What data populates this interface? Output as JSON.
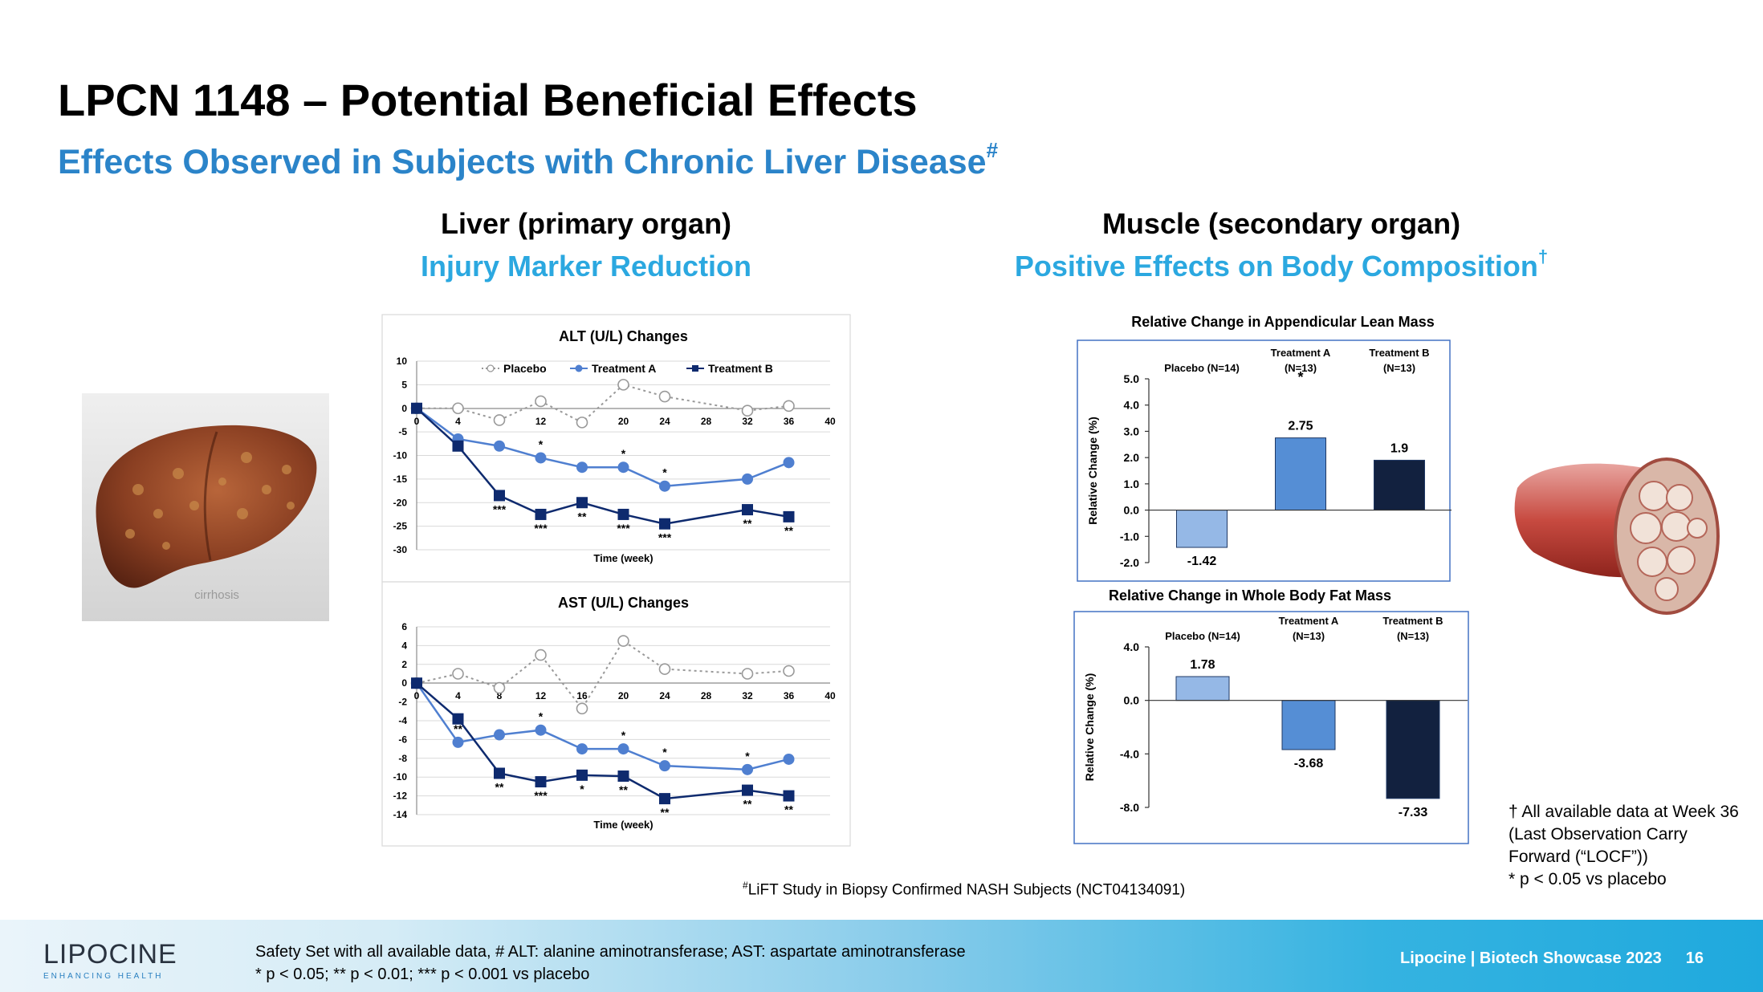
{
  "title": "LPCN 1148 – Potential Beneficial Effects",
  "subtitle": {
    "text": "Effects Observed in Subjects with Chronic Liver Disease",
    "mark": "#"
  },
  "liver": {
    "heading": "Liver  (primary organ)",
    "subheading": "Injury Marker Reduction",
    "image_caption": "cirrhosis"
  },
  "muscle": {
    "heading": "Muscle  (secondary organ)",
    "subheading": "Positive Effects on Body Composition",
    "mark": "†"
  },
  "footnote_mid": {
    "mark": "#",
    "text": "LiFT Study in Biopsy Confirmed NASH Subjects (NCT04134091)"
  },
  "right_note": {
    "line1": "† All available data at Week 36 (Last Observation Carry Forward (“LOCF”))",
    "line2": "* p < 0.05 vs placebo"
  },
  "footer": {
    "logo": "LIPOCINE",
    "logo_tagline": "ENHANCING HEALTH",
    "note1": "Safety Set with all available data,  # ALT:  alanine aminotransferase; AST: aspartate aminotransferase",
    "note2": "* p < 0.05; ** p < 0.01; *** p < 0.001 vs placebo",
    "event": "Lipocine |  Biotech Showcase 2023",
    "page": "16"
  },
  "colors": {
    "placebo_line": "#999999",
    "treatment_a": "#4f7fd0",
    "treatment_b": "#0e2a6e",
    "bar_placebo": "#95b8e6",
    "bar_a": "#558ed5",
    "bar_b": "#12213f",
    "subtitle": "#2b84c9"
  },
  "chart_data": [
    {
      "id": "alt",
      "type": "line",
      "title": "ALT (U/L) Changes",
      "xlabel": "Time (week)",
      "x": [
        0,
        4,
        8,
        12,
        16,
        20,
        24,
        32,
        36
      ],
      "xticks": [
        0,
        4,
        8,
        12,
        16,
        20,
        24,
        28,
        32,
        36,
        40
      ],
      "xlim": [
        0,
        40
      ],
      "yticks": [
        10,
        5,
        0,
        -5,
        -10,
        -15,
        -20,
        -25,
        -30
      ],
      "ylim": [
        -30,
        10
      ],
      "legend": "top",
      "series": [
        {
          "name": "Placebo",
          "values": [
            0,
            0,
            -2.5,
            1.5,
            -3,
            5,
            2.5,
            -0.5,
            0.5
          ]
        },
        {
          "name": "Treatment A",
          "values": [
            0,
            -6.5,
            -8,
            -10.5,
            -12.5,
            -12.5,
            -16.5,
            -15,
            -11.5
          ],
          "annotations": [
            "",
            "",
            "",
            "*",
            "",
            "*",
            "*",
            "",
            ""
          ]
        },
        {
          "name": "Treatment B",
          "values": [
            0,
            -8,
            -18.5,
            -22.5,
            -20,
            -22.5,
            -24.5,
            -21.5,
            -23
          ],
          "annotations": [
            "",
            "",
            "***",
            "***",
            "**",
            "***",
            "***",
            "**",
            "**"
          ]
        }
      ]
    },
    {
      "id": "ast",
      "type": "line",
      "title": "AST (U/L) Changes",
      "xlabel": "Time (week)",
      "x": [
        0,
        4,
        8,
        12,
        16,
        20,
        24,
        32,
        36
      ],
      "xticks": [
        0,
        4,
        8,
        12,
        16,
        20,
        24,
        28,
        32,
        36,
        40
      ],
      "xlim": [
        0,
        40
      ],
      "yticks": [
        6,
        4,
        2,
        0,
        -2,
        -4,
        -6,
        -8,
        -10,
        -12,
        -14
      ],
      "ylim": [
        -14,
        6
      ],
      "series": [
        {
          "name": "Placebo",
          "values": [
            0,
            1,
            -0.5,
            3,
            -2.7,
            4.5,
            1.5,
            1,
            1.3
          ]
        },
        {
          "name": "Treatment A",
          "values": [
            0,
            -6.3,
            -5.5,
            -5,
            -7,
            -7,
            -8.8,
            -9.2,
            -8.1
          ],
          "annotations": [
            "",
            "**",
            "",
            "*",
            "",
            "*",
            "*",
            "*",
            ""
          ]
        },
        {
          "name": "Treatment B",
          "values": [
            0,
            -3.8,
            -9.6,
            -10.5,
            -9.8,
            -9.9,
            -12.3,
            -11.4,
            -12
          ],
          "annotations": [
            "",
            "",
            "**",
            "***",
            "*",
            "**",
            "**",
            "**",
            "**"
          ]
        }
      ]
    },
    {
      "id": "lean",
      "type": "bar",
      "title": "Relative Change in Appendicular Lean Mass",
      "ylabel": "Relative Change (%)",
      "categories": [
        [
          "Placebo (N=14)"
        ],
        [
          "Treatment A",
          "(N=13)"
        ],
        [
          "Treatment B",
          "(N=13)"
        ]
      ],
      "values": [
        -1.42,
        2.75,
        1.9
      ],
      "labels": [
        "-1.42",
        "2.75",
        "1.9"
      ],
      "significance": [
        "",
        "*",
        ""
      ],
      "yticks": [
        5.0,
        4.0,
        3.0,
        2.0,
        1.0,
        0.0,
        -1.0,
        -2.0
      ],
      "ytick_labels": [
        "5.0",
        "4.0",
        "3.0",
        "2.0",
        "1.0",
        "0.0",
        "-1.0",
        "-2.0"
      ],
      "ylim": [
        -2,
        5
      ]
    },
    {
      "id": "fat",
      "type": "bar",
      "title": "Relative Change in Whole Body Fat Mass",
      "ylabel": "Relative Change (%)",
      "categories": [
        [
          "Placebo (N=14)"
        ],
        [
          "Treatment A",
          "(N=13)"
        ],
        [
          "Treatment B",
          "(N=13)"
        ]
      ],
      "values": [
        1.78,
        -3.68,
        -7.33
      ],
      "labels": [
        "1.78",
        "-3.68",
        "-7.33"
      ],
      "yticks": [
        4.0,
        0.0,
        -4.0,
        -8.0
      ],
      "ytick_labels": [
        "4.0",
        "0.0",
        "-4.0",
        "-8.0"
      ],
      "ylim": [
        -8,
        4
      ]
    }
  ]
}
